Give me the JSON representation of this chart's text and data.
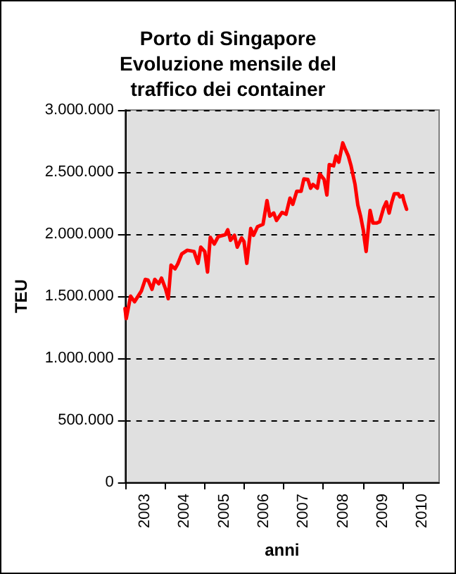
{
  "chart_data": {
    "type": "line",
    "title": "Porto di Singapore\nEvoluzione mensile del\ntraffico dei container",
    "xlabel": "anni",
    "ylabel": "TEU",
    "x": [
      2003.0,
      2003.03,
      2003.14,
      2003.24,
      2003.41,
      2003.51,
      2003.58,
      2003.68,
      2003.75,
      2003.85,
      2003.92,
      2004.02,
      2004.09,
      2004.16,
      2004.26,
      2004.33,
      2004.43,
      2004.57,
      2004.74,
      2004.84,
      2004.91,
      2005.01,
      2005.08,
      2005.15,
      2005.25,
      2005.35,
      2005.53,
      2005.59,
      2005.66,
      2005.76,
      2005.83,
      2005.94,
      2006.0,
      2006.07,
      2006.17,
      2006.24,
      2006.34,
      2006.48,
      2006.58,
      2006.65,
      2006.75,
      2006.82,
      2006.96,
      2007.06,
      2007.16,
      2007.23,
      2007.33,
      2007.44,
      2007.51,
      2007.61,
      2007.68,
      2007.74,
      2007.85,
      2007.91,
      2008.02,
      2008.09,
      2008.15,
      2008.26,
      2008.32,
      2008.39,
      2008.49,
      2008.56,
      2008.63,
      2008.7,
      2008.8,
      2008.87,
      2008.94,
      2009.01,
      2009.04,
      2009.08,
      2009.14,
      2009.18,
      2009.25,
      2009.35,
      2009.42,
      2009.52,
      2009.59,
      2009.66,
      2009.72,
      2009.79,
      2009.89,
      2009.93,
      2010.0,
      2010.03,
      2010.1
    ],
    "series": [
      {
        "color": "#ff0000",
        "values": [
          1400000,
          1320000,
          1500000,
          1455000,
          1540000,
          1635000,
          1630000,
          1555000,
          1635000,
          1600000,
          1645000,
          1560000,
          1480000,
          1750000,
          1720000,
          1760000,
          1840000,
          1870000,
          1860000,
          1765000,
          1895000,
          1860000,
          1695000,
          1975000,
          1920000,
          1980000,
          1995000,
          2035000,
          1950000,
          1990000,
          1895000,
          1970000,
          1940000,
          1765000,
          2045000,
          1990000,
          2060000,
          2080000,
          2270000,
          2145000,
          2170000,
          2110000,
          2175000,
          2160000,
          2290000,
          2240000,
          2345000,
          2345000,
          2445000,
          2440000,
          2370000,
          2400000,
          2370000,
          2485000,
          2440000,
          2315000,
          2560000,
          2550000,
          2630000,
          2580000,
          2735000,
          2680000,
          2630000,
          2550000,
          2400000,
          2235000,
          2145000,
          2030000,
          1950000,
          1860000,
          2065000,
          2190000,
          2090000,
          2090000,
          2100000,
          2210000,
          2260000,
          2170000,
          2250000,
          2325000,
          2325000,
          2300000,
          2310000,
          2270000,
          2200000
        ]
      }
    ],
    "xlim": [
      2003,
      2010.92
    ],
    "xticks": [
      {
        "value": 2003,
        "label": null
      },
      {
        "value": 2003.5,
        "label": "2003"
      },
      {
        "value": 2004,
        "label": null
      },
      {
        "value": 2004.5,
        "label": "2004"
      },
      {
        "value": 2005,
        "label": null
      },
      {
        "value": 2005.5,
        "label": "2005"
      },
      {
        "value": 2006,
        "label": null
      },
      {
        "value": 2006.5,
        "label": "2006"
      },
      {
        "value": 2007,
        "label": null
      },
      {
        "value": 2007.5,
        "label": "2007"
      },
      {
        "value": 2008,
        "label": null
      },
      {
        "value": 2008.5,
        "label": "2008"
      },
      {
        "value": 2009,
        "label": null
      },
      {
        "value": 2009.5,
        "label": "2009"
      },
      {
        "value": 2010,
        "label": null
      },
      {
        "value": 2010.5,
        "label": "2010"
      }
    ],
    "ylim": [
      0,
      3000000
    ],
    "yticks": [
      {
        "value": 0,
        "label": "0"
      },
      {
        "value": 500000,
        "label": "500.000"
      },
      {
        "value": 1000000,
        "label": "1.000.000"
      },
      {
        "value": 1500000,
        "label": "1.500.000"
      },
      {
        "value": 2000000,
        "label": "2.000.000"
      },
      {
        "value": 2500000,
        "label": "2.500.000"
      },
      {
        "value": 3000000,
        "label": "3.000.000"
      }
    ],
    "grid": "y",
    "marker": "none",
    "line_style": "solid"
  }
}
